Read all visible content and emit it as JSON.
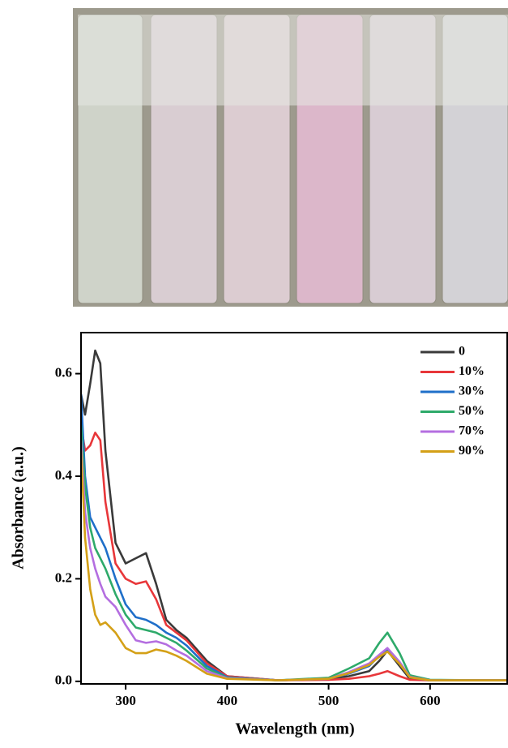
{
  "chart_data": {
    "type": "line",
    "x": [
      256,
      260,
      265,
      270,
      275,
      280,
      290,
      300,
      310,
      320,
      330,
      340,
      350,
      360,
      380,
      400,
      450,
      500,
      520,
      540,
      550,
      558,
      570,
      580,
      600,
      650,
      676
    ],
    "series": [
      {
        "name": "0",
        "color": "#3a3a3a",
        "values": [
          0.56,
          0.52,
          0.58,
          0.645,
          0.62,
          0.45,
          0.27,
          0.23,
          0.24,
          0.25,
          0.19,
          0.12,
          0.1,
          0.085,
          0.04,
          0.01,
          0.002,
          0.005,
          0.01,
          0.02,
          0.04,
          0.06,
          0.03,
          0.005,
          0.002,
          0.002,
          0.002
        ]
      },
      {
        "name": "10%",
        "color": "#e8373a",
        "values": [
          0.5,
          0.45,
          0.46,
          0.485,
          0.47,
          0.35,
          0.23,
          0.2,
          0.19,
          0.195,
          0.16,
          0.11,
          0.095,
          0.08,
          0.035,
          0.01,
          0.002,
          0.003,
          0.005,
          0.01,
          0.015,
          0.02,
          0.01,
          0.003,
          0.002,
          0.002,
          0.002
        ]
      },
      {
        "name": "30%",
        "color": "#1f6fc9",
        "values": [
          0.56,
          0.4,
          0.32,
          0.3,
          0.28,
          0.26,
          0.2,
          0.15,
          0.125,
          0.12,
          0.11,
          0.095,
          0.085,
          0.07,
          0.03,
          0.008,
          0.002,
          0.005,
          0.015,
          0.03,
          0.05,
          0.062,
          0.035,
          0.008,
          0.002,
          0.002,
          0.002
        ]
      },
      {
        "name": "50%",
        "color": "#2eaa6a",
        "values": [
          0.5,
          0.38,
          0.3,
          0.26,
          0.24,
          0.22,
          0.17,
          0.13,
          0.105,
          0.1,
          0.095,
          0.085,
          0.075,
          0.06,
          0.025,
          0.007,
          0.002,
          0.007,
          0.025,
          0.045,
          0.075,
          0.095,
          0.055,
          0.012,
          0.003,
          0.002,
          0.002
        ]
      },
      {
        "name": "70%",
        "color": "#b46ee0",
        "values": [
          0.47,
          0.33,
          0.26,
          0.22,
          0.19,
          0.165,
          0.145,
          0.11,
          0.08,
          0.075,
          0.078,
          0.072,
          0.06,
          0.05,
          0.02,
          0.006,
          0.002,
          0.005,
          0.018,
          0.035,
          0.052,
          0.065,
          0.038,
          0.009,
          0.002,
          0.002,
          0.002
        ]
      },
      {
        "name": "90%",
        "color": "#d4a017",
        "values": [
          0.45,
          0.28,
          0.18,
          0.13,
          0.11,
          0.115,
          0.095,
          0.065,
          0.055,
          0.055,
          0.062,
          0.058,
          0.05,
          0.04,
          0.015,
          0.005,
          0.002,
          0.005,
          0.016,
          0.032,
          0.048,
          0.058,
          0.034,
          0.008,
          0.002,
          0.002,
          0.002
        ]
      }
    ],
    "xlabel": "Wavelength (nm)",
    "ylabel": "Absorbance (a.u.)",
    "xlim": [
      256,
      676
    ],
    "ylim": [
      -0.005,
      0.68
    ],
    "xticks": [
      300,
      400,
      500,
      600
    ],
    "yticks": [
      {
        "value": 0,
        "label": "0.0"
      },
      0.2,
      0.4,
      0.6
    ],
    "legend": "upper right"
  }
}
